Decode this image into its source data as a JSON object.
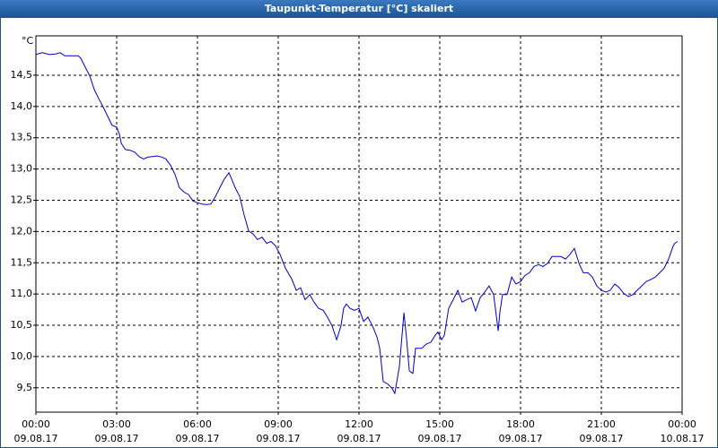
{
  "chart_data": {
    "type": "line",
    "title": "Taupunkt-Temperatur [°C] skaliert",
    "y_unit": "°C",
    "xlim": [
      0,
      24
    ],
    "xticks": [
      {
        "value": 0,
        "label": "00:00",
        "date": "09.08.17"
      },
      {
        "value": 3,
        "label": "03:00",
        "date": "09.08.17"
      },
      {
        "value": 6,
        "label": "06:00",
        "date": "09.08.17"
      },
      {
        "value": 9,
        "label": "09:00",
        "date": "09.08.17"
      },
      {
        "value": 12,
        "label": "12:00",
        "date": "09.08.17"
      },
      {
        "value": 15,
        "label": "15:00",
        "date": "09.08.17"
      },
      {
        "value": 18,
        "label": "18:00",
        "date": "09.08.17"
      },
      {
        "value": 21,
        "label": "21:00",
        "date": "09.08.17"
      },
      {
        "value": 24,
        "label": "00:00",
        "date": "10.08.17"
      }
    ],
    "ylim": [
      9.11,
      15.13
    ],
    "yticks": [
      {
        "value": 9.5,
        "label": "9,5"
      },
      {
        "value": 10,
        "label": "10,0"
      },
      {
        "value": 10.5,
        "label": "10,5"
      },
      {
        "value": 11,
        "label": "11,0"
      },
      {
        "value": 11.5,
        "label": "11,5"
      },
      {
        "value": 12,
        "label": "12,0"
      },
      {
        "value": 12.5,
        "label": "12,5"
      },
      {
        "value": 13,
        "label": "13,0"
      },
      {
        "value": 13.5,
        "label": "13,5"
      },
      {
        "value": 14,
        "label": "14,0"
      },
      {
        "value": 14.5,
        "label": "14,5"
      }
    ],
    "grid": true,
    "x": [
      0,
      0.23,
      0.5,
      0.73,
      0.9,
      1.07,
      1.33,
      1.57,
      1.67,
      1.83,
      2,
      2.17,
      2.33,
      2.5,
      2.67,
      2.83,
      3,
      3.1,
      3.17,
      3.33,
      3.5,
      3.67,
      3.83,
      4,
      4.17,
      4.33,
      4.5,
      4.67,
      4.83,
      5,
      5.17,
      5.33,
      5.5,
      5.67,
      5.83,
      6,
      6.17,
      6.33,
      6.5,
      6.67,
      6.83,
      7,
      7.17,
      7.27,
      7.4,
      7.57,
      7.73,
      7.9,
      8.07,
      8.23,
      8.4,
      8.57,
      8.73,
      8.9,
      9.07,
      9.27,
      9.5,
      9.67,
      9.83,
      10,
      10.17,
      10.33,
      10.5,
      10.67,
      10.83,
      11,
      11.17,
      11.33,
      11.43,
      11.53,
      11.67,
      11.83,
      12,
      12.17,
      12.33,
      12.5,
      12.67,
      12.77,
      12.9,
      13.07,
      13.23,
      13.33,
      13.5,
      13.67,
      13.77,
      13.87,
      14,
      14.1,
      14.2,
      14.33,
      14.5,
      14.67,
      14.83,
      14.93,
      15.07,
      15.17,
      15.33,
      15.5,
      15.67,
      15.83,
      16,
      16.17,
      16.33,
      16.5,
      16.67,
      16.83,
      17,
      17.17,
      17.23,
      17.33,
      17.5,
      17.67,
      17.83,
      18,
      18.17,
      18.33,
      18.5,
      18.67,
      18.83,
      19,
      19.17,
      19.33,
      19.5,
      19.67,
      19.83,
      20,
      20.17,
      20.33,
      20.5,
      20.67,
      20.83,
      21,
      21.17,
      21.33,
      21.5,
      21.67,
      21.83,
      22,
      22.17,
      22.33,
      22.5,
      22.67,
      22.83,
      23,
      23.17,
      23.33,
      23.5,
      23.67,
      23.73,
      23.83
    ],
    "series": [
      {
        "name": "Taupunkt-Temperatur",
        "color": "#0000cc",
        "values": [
          14.83,
          14.86,
          14.83,
          14.84,
          14.86,
          14.81,
          14.81,
          14.81,
          14.77,
          14.63,
          14.49,
          14.27,
          14.13,
          13.99,
          13.84,
          13.7,
          13.67,
          13.56,
          13.41,
          13.31,
          13.3,
          13.27,
          13.2,
          13.16,
          13.19,
          13.2,
          13.21,
          13.19,
          13.16,
          13.06,
          12.91,
          12.7,
          12.63,
          12.59,
          12.49,
          12.46,
          12.44,
          12.43,
          12.44,
          12.56,
          12.7,
          12.84,
          12.94,
          12.84,
          12.7,
          12.56,
          12.27,
          12.01,
          11.96,
          11.87,
          11.91,
          11.81,
          11.84,
          11.77,
          11.63,
          11.41,
          11.24,
          11.06,
          11.1,
          10.91,
          10.99,
          10.87,
          10.77,
          10.74,
          10.63,
          10.49,
          10.27,
          10.49,
          10.77,
          10.84,
          10.77,
          10.74,
          10.77,
          10.56,
          10.63,
          10.49,
          10.31,
          10.13,
          9.6,
          9.56,
          9.49,
          9.41,
          9.84,
          10.7,
          10.27,
          9.77,
          9.73,
          10.13,
          10.13,
          10.13,
          10.2,
          10.23,
          10.34,
          10.39,
          10.27,
          10.34,
          10.77,
          10.91,
          11.06,
          10.87,
          10.91,
          10.94,
          10.73,
          10.94,
          11.03,
          11.13,
          10.99,
          10.41,
          10.7,
          10.99,
          10.99,
          11.27,
          11.16,
          11.2,
          11.3,
          11.34,
          11.44,
          11.47,
          11.44,
          11.49,
          11.6,
          11.6,
          11.6,
          11.56,
          11.63,
          11.73,
          11.49,
          11.34,
          11.34,
          11.27,
          11.13,
          11.06,
          11.03,
          11.06,
          11.16,
          11.1,
          11.01,
          10.96,
          10.99,
          11.06,
          11.13,
          11.2,
          11.23,
          11.27,
          11.34,
          11.41,
          11.56,
          11.77,
          11.81,
          11.84
        ]
      }
    ]
  }
}
